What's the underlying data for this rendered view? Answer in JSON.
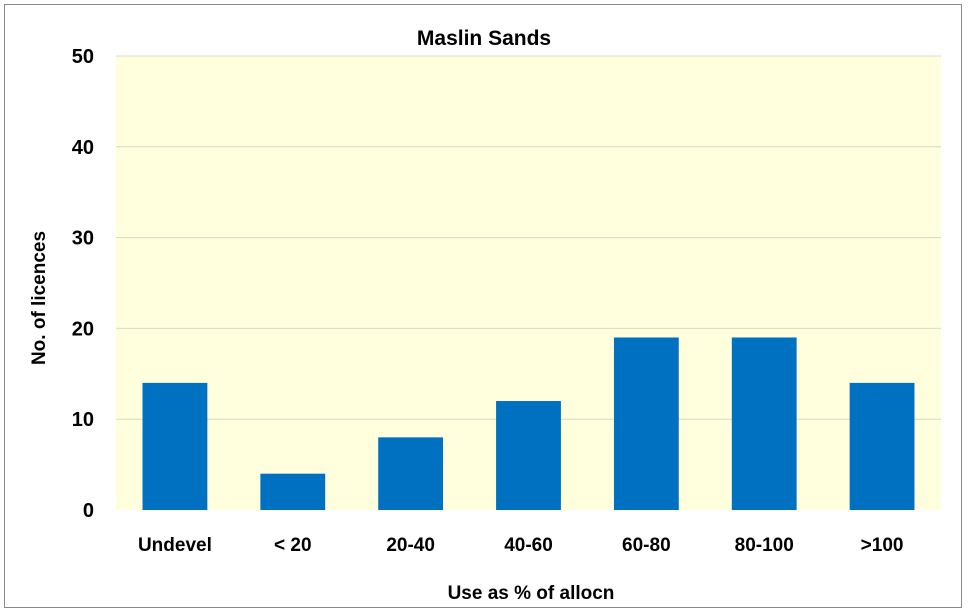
{
  "chart_data": {
    "type": "bar",
    "title": "Maslin  Sands",
    "xlabel": "Use as % of allocn",
    "ylabel": "No. of licences",
    "categories": [
      "Undevel",
      "< 20",
      "20-40",
      "40-60",
      "60-80",
      "80-100",
      ">100"
    ],
    "values": [
      14,
      4,
      8,
      12,
      19,
      19,
      14
    ],
    "ylim": [
      0,
      50
    ],
    "yticks": [
      0,
      10,
      20,
      30,
      40,
      50
    ],
    "grid": true,
    "legend": "none",
    "colors": {
      "bar": "#0070C0",
      "plot_background": "#FFFFDD",
      "gridline": "#D9D9C6"
    }
  }
}
